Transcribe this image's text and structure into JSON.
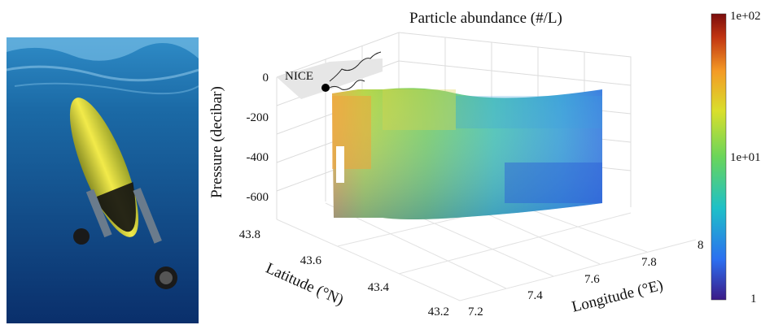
{
  "photo": {
    "subject": "underwater-glider-photo"
  },
  "chart_data": {
    "type": "3d-surface",
    "title": "Particle abundance (#/L)",
    "zlabel": "Pressure (decibar)",
    "xlabel": "Longitude (°E)",
    "ylabel": "Latitude (°N)",
    "z_ticks": [
      "0",
      "-200",
      "-400",
      "-600"
    ],
    "x_ticks": [
      "7.2",
      "7.4",
      "7.6",
      "7.8",
      "8"
    ],
    "y_ticks": [
      "43.8",
      "43.6",
      "43.4",
      "43.2"
    ],
    "zlim": [
      -700,
      0
    ],
    "xlim": [
      7.2,
      8.0
    ],
    "ylim": [
      43.2,
      43.8
    ],
    "annotation": {
      "label": "NICE",
      "lon": 7.27,
      "lat": 43.69,
      "pressure": 0
    },
    "colorbar": {
      "scale": "log",
      "ticks": [
        "1e+02",
        "1e+01",
        "1"
      ],
      "range": [
        1,
        100
      ],
      "colors": [
        "#3b1a86",
        "#2c6ff0",
        "#1ec0c8",
        "#6ad55a",
        "#d9df2c",
        "#f49a25",
        "#c03311",
        "#7a0d0d"
      ]
    },
    "transect": {
      "longitude_start": 7.27,
      "longitude_end": 7.95,
      "pressure_min": -650,
      "pressure_max": -40,
      "description_of_pattern": "high abundance (orange/yellow) near coast and surface, decreasing to low (blue) offshore at depth"
    }
  }
}
